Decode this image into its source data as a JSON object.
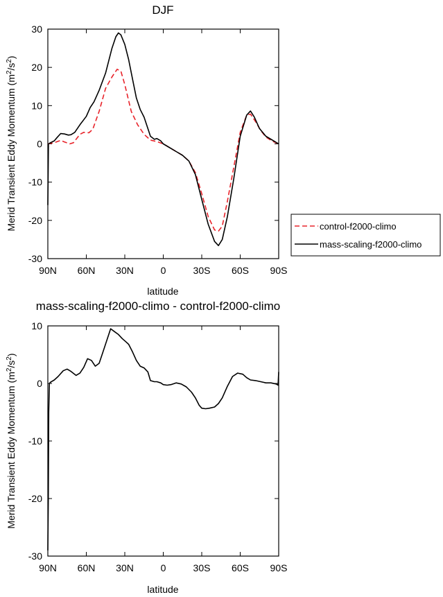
{
  "chart_data": [
    {
      "type": "line",
      "title": "DJF",
      "xlabel": "latitude",
      "ylabel": "Merid Transient Eddy Momentum (m²/s²)",
      "ylabel_main": "Merid Transient Eddy Momentum (m",
      "ylabel_sup": "2",
      "ylabel_mid": "/s",
      "ylabel_sup2": "2",
      "ylabel_end": ")",
      "xlim": [
        90,
        -90
      ],
      "ylim": [
        -30,
        30
      ],
      "xticks": [
        90,
        60,
        30,
        0,
        -30,
        -60,
        -90
      ],
      "xtick_labels": [
        "90N",
        "60N",
        "30N",
        "0",
        "30S",
        "60S",
        "90S"
      ],
      "yticks": [
        -30,
        -20,
        -10,
        0,
        10,
        20,
        30
      ],
      "ytick_labels": [
        "-30",
        "-20",
        "-10",
        "0",
        "10",
        "20",
        "30"
      ],
      "legend": "right",
      "series": [
        {
          "name": "control-f2000-climo",
          "color": "#e8232a",
          "dash": true,
          "x": [
            90,
            85,
            80,
            77,
            73,
            70,
            65,
            62,
            58,
            55,
            50,
            45,
            40,
            36,
            33,
            30,
            25,
            20,
            15,
            10,
            5,
            0,
            -5,
            -10,
            -15,
            -20,
            -25,
            -30,
            -35,
            -40,
            -43,
            -46,
            -50,
            -55,
            -60,
            -65,
            -68,
            -72,
            -76,
            -80,
            -85,
            -90
          ],
          "y": [
            0,
            0.3,
            0.9,
            0.5,
            0,
            0.3,
            2.5,
            3,
            2.9,
            3.8,
            8.5,
            14.5,
            17.5,
            19.5,
            19,
            15.5,
            8.5,
            5,
            2.5,
            1,
            0.6,
            0,
            -1,
            -2,
            -3,
            -4.5,
            -7.5,
            -13,
            -19,
            -22.5,
            -22.8,
            -21.5,
            -15,
            -6,
            3,
            7.5,
            7.8,
            5.8,
            3.5,
            1.8,
            0.7,
            0
          ]
        },
        {
          "name": "mass-scaling-f2000-climo",
          "color": "#000000",
          "dash": false,
          "x": [
            90,
            89.5,
            88,
            85,
            83,
            80,
            77,
            74,
            72,
            69,
            65,
            62,
            60,
            57,
            54,
            50,
            45,
            40,
            37,
            35,
            33,
            30,
            27,
            24,
            21,
            18,
            15,
            12,
            10,
            7,
            5,
            2,
            0,
            -5,
            -10,
            -15,
            -20,
            -25,
            -30,
            -35,
            -40,
            -43,
            -46,
            -50,
            -55,
            -60,
            -65,
            -68,
            -71,
            -75,
            -80,
            -85,
            -90
          ],
          "y": [
            -16,
            0,
            0.3,
            0.8,
            1.6,
            2.7,
            2.6,
            2.3,
            2.4,
            3,
            5,
            6.3,
            7.2,
            9.5,
            11,
            14,
            18.5,
            25,
            28,
            29,
            28.5,
            26,
            22,
            17,
            12,
            9,
            7,
            4,
            2,
            1.2,
            1.4,
            0.8,
            0,
            -1,
            -2,
            -3,
            -4.5,
            -8,
            -14.5,
            -21,
            -25.5,
            -26.6,
            -25,
            -19,
            -9,
            2,
            7.5,
            8.6,
            7,
            4,
            2,
            1,
            0
          ]
        }
      ]
    },
    {
      "type": "line",
      "title": "mass-scaling-f2000-climo - control-f2000-climo",
      "xlabel": "latitude",
      "ylabel": "Merid Transient Eddy Momentum (m²/s²)",
      "ylabel_main": "Merid Transient Eddy Momentum (m",
      "ylabel_sup": "2",
      "ylabel_mid": "/s",
      "ylabel_sup2": "2",
      "ylabel_end": ")",
      "xlim": [
        90,
        -90
      ],
      "ylim": [
        -30,
        10
      ],
      "xticks": [
        90,
        60,
        30,
        0,
        -30,
        -60,
        -90
      ],
      "xtick_labels": [
        "90N",
        "60N",
        "30N",
        "0",
        "30S",
        "60S",
        "90S"
      ],
      "yticks": [
        -30,
        -20,
        -10,
        0,
        10
      ],
      "ytick_labels": [
        "-30",
        "-20",
        "-10",
        "0",
        "10"
      ],
      "series": [
        {
          "color": "#000000",
          "dash": false,
          "x": [
            90,
            89.6,
            89.3,
            88.8,
            88,
            85,
            82,
            78,
            75,
            72,
            68,
            65,
            62,
            59,
            56,
            53,
            50,
            47,
            44,
            41,
            38,
            35,
            32,
            29,
            27,
            24,
            21,
            18,
            15,
            12,
            10,
            7,
            5,
            2,
            0,
            -3,
            -6,
            -10,
            -14,
            -18,
            -22,
            -25,
            -28,
            -30,
            -33,
            -36,
            -40,
            -43,
            -46,
            -50,
            -54,
            -58,
            -62,
            -65,
            -68,
            -72,
            -76,
            -80,
            -84,
            -88,
            -89.5,
            -90
          ],
          "y": [
            -29,
            -20,
            -5,
            0,
            0.2,
            0.6,
            1.2,
            2.2,
            2.5,
            2.1,
            1.4,
            1.8,
            2.8,
            4.3,
            4,
            3,
            3.5,
            5.5,
            7.5,
            9.5,
            9,
            8.5,
            7.8,
            7.2,
            6.8,
            5.5,
            4,
            3,
            2.7,
            2,
            0.5,
            0.3,
            0.3,
            0.1,
            -0.2,
            -0.3,
            -0.2,
            0.1,
            -0.1,
            -0.6,
            -1.5,
            -2.5,
            -3.8,
            -4.3,
            -4.4,
            -4.3,
            -4.1,
            -3.5,
            -2.5,
            -0.5,
            1.2,
            1.8,
            1.6,
            1.0,
            0.6,
            0.5,
            0.3,
            0.1,
            0.1,
            -0.1,
            -0.3,
            2
          ]
        }
      ]
    }
  ]
}
